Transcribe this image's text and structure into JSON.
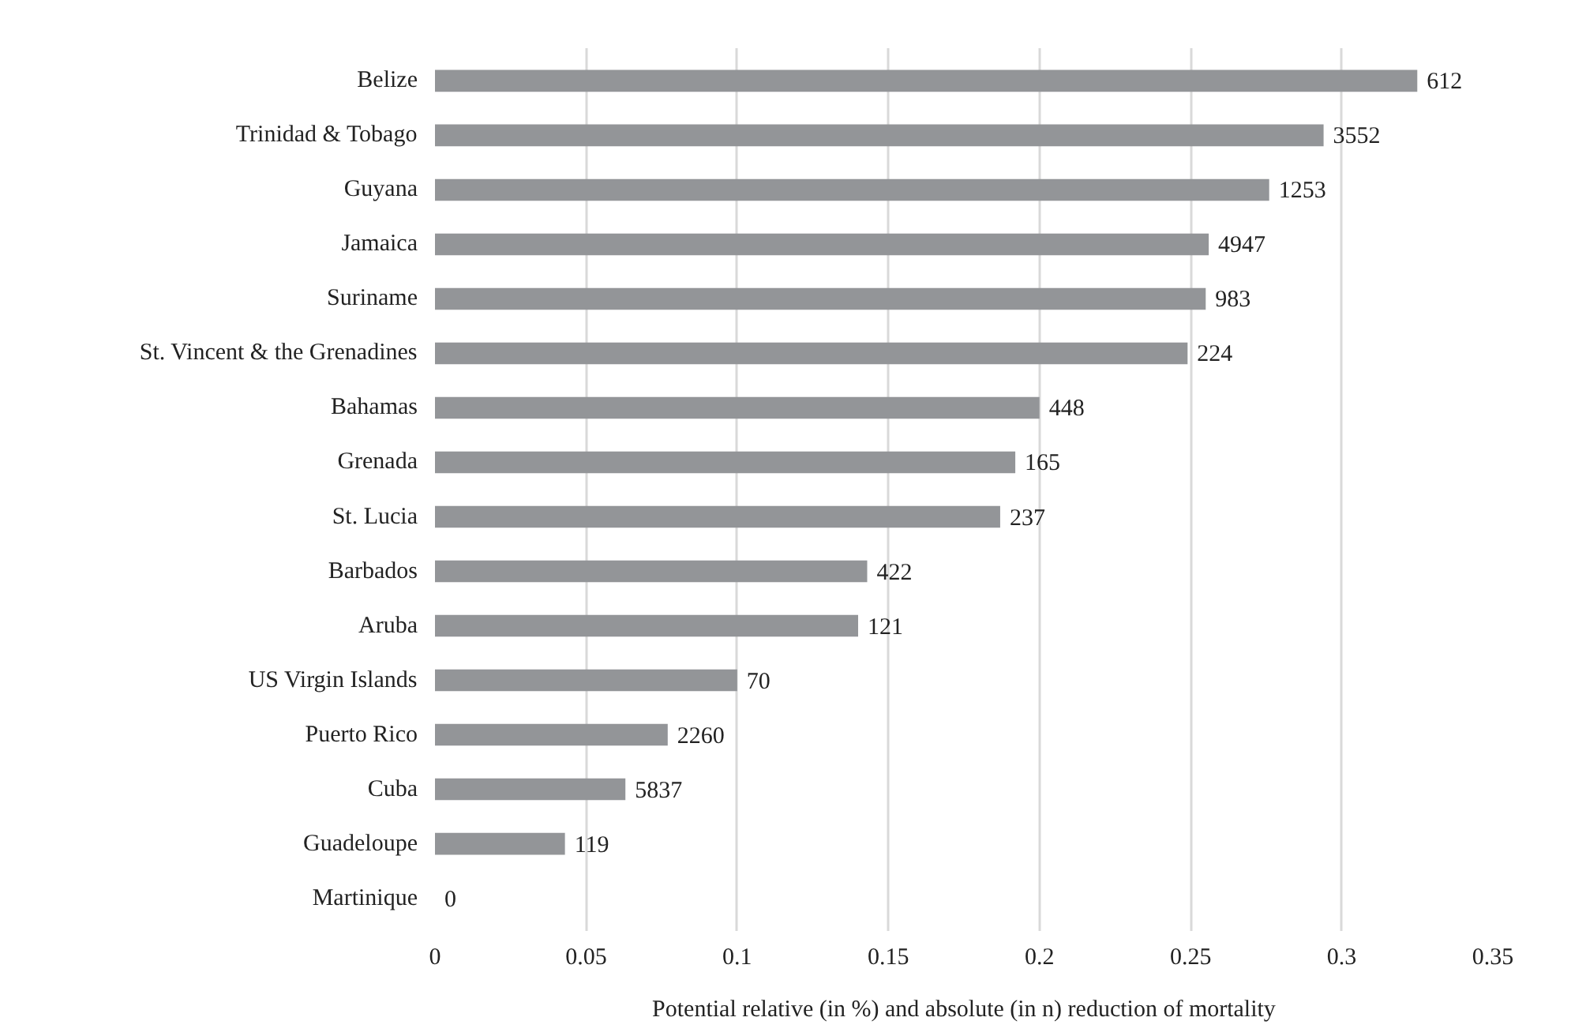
{
  "chart_data": {
    "type": "bar",
    "orientation": "horizontal",
    "xlabel": "Potential relative (in %) and absolute (in n) reduction of mortality",
    "categories": [
      "Belize",
      "Trinidad & Tobago",
      "Guyana",
      "Jamaica",
      "Suriname",
      "St. Vincent & the Grenadines",
      "Bahamas",
      "Grenada",
      "St. Lucia",
      "Barbados",
      "Aruba",
      "US Virgin Islands",
      "Puerto Rico",
      "Cuba",
      "Guadeloupe",
      "Martinique"
    ],
    "values": [
      0.325,
      0.294,
      0.276,
      0.256,
      0.255,
      0.249,
      0.2,
      0.192,
      0.187,
      0.143,
      0.14,
      0.1,
      0.077,
      0.063,
      0.043,
      0
    ],
    "annotations": [
      {
        "text": "612",
        "x": 0.325,
        "y": "Belize"
      },
      {
        "text": "3552",
        "x": 0.294,
        "y": "Trinidad & Tobago"
      },
      {
        "text": "1253",
        "x": 0.276,
        "y": "Guyana"
      },
      {
        "text": "4947",
        "x": 0.256,
        "y": "Jamaica"
      },
      {
        "text": "983",
        "x": 0.255,
        "y": "Suriname"
      },
      {
        "text": "224",
        "x": 0.249,
        "y": "St. Vincent & the Grenadines"
      },
      {
        "text": "448",
        "x": 0.2,
        "y": "Bahamas"
      },
      {
        "text": "165",
        "x": 0.192,
        "y": "Grenada"
      },
      {
        "text": "237",
        "x": 0.187,
        "y": "St. Lucia"
      },
      {
        "text": "422",
        "x": 0.143,
        "y": "Barbados"
      },
      {
        "text": "121",
        "x": 0.14,
        "y": "Aruba"
      },
      {
        "text": "70",
        "x": 0.1,
        "y": "US Virgin Islands"
      },
      {
        "text": "2260",
        "x": 0.077,
        "y": "Puerto Rico"
      },
      {
        "text": "5837",
        "x": 0.063,
        "y": "Cuba"
      },
      {
        "text": "119",
        "x": 0.043,
        "y": "Guadeloupe"
      },
      {
        "text": "0",
        "x": 0,
        "y": "Martinique"
      }
    ],
    "color": "#939598",
    "xlim": [
      0,
      0.35
    ],
    "xticks": [
      0,
      0.05,
      0.1,
      0.15,
      0.2,
      0.25,
      0.3,
      0.35
    ],
    "grid": "x"
  }
}
